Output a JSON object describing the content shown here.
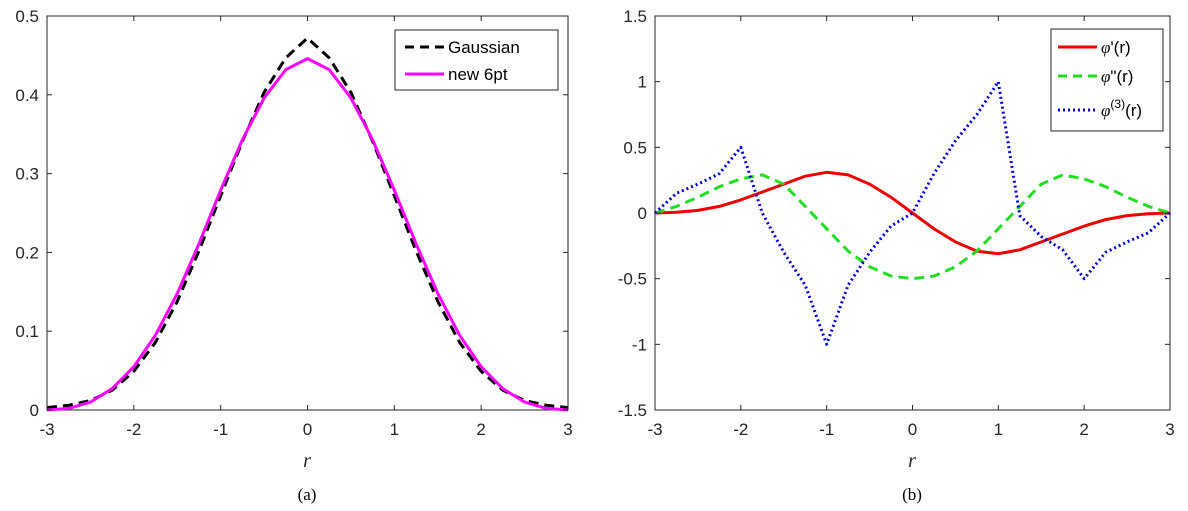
{
  "chart_data": [
    {
      "type": "line",
      "caption": "(a)",
      "xlabel": "r",
      "xlim": [
        -3,
        3
      ],
      "ylim": [
        0,
        0.5
      ],
      "xticks": [
        -3,
        -2,
        -1,
        0,
        1,
        2,
        3
      ],
      "yticks": [
        0,
        0.1,
        0.2,
        0.3,
        0.4,
        0.5
      ],
      "xtick_labels": [
        "-3",
        "-2",
        "-1",
        "0",
        "1",
        "2",
        "3"
      ],
      "ytick_labels": [
        "0",
        "0.1",
        "0.2",
        "0.3",
        "0.4",
        "0.5"
      ],
      "legend_position": "top-right",
      "x": [
        -3,
        -2.75,
        -2.5,
        -2.25,
        -2,
        -1.75,
        -1.5,
        -1.25,
        -1,
        -0.75,
        -0.5,
        -0.25,
        0,
        0.25,
        0.5,
        0.75,
        1,
        1.25,
        1.5,
        1.75,
        2,
        2.25,
        2.5,
        2.75,
        3
      ],
      "series": [
        {
          "name": "Gaussian",
          "color": "#000000",
          "style": "dashed",
          "values": [
            0.003,
            0.006,
            0.012,
            0.025,
            0.049,
            0.086,
            0.138,
            0.202,
            0.272,
            0.341,
            0.403,
            0.447,
            0.472,
            0.447,
            0.403,
            0.341,
            0.272,
            0.202,
            0.138,
            0.086,
            0.049,
            0.025,
            0.012,
            0.006,
            0.003
          ]
        },
        {
          "name": "new 6pt",
          "color": "#ff00ff",
          "style": "solid",
          "values": [
            0.0,
            0.002,
            0.01,
            0.027,
            0.055,
            0.095,
            0.148,
            0.211,
            0.279,
            0.343,
            0.396,
            0.432,
            0.446,
            0.432,
            0.396,
            0.343,
            0.279,
            0.211,
            0.148,
            0.095,
            0.055,
            0.027,
            0.01,
            0.002,
            0.0
          ]
        }
      ]
    },
    {
      "type": "line",
      "caption": "(b)",
      "xlabel": "r",
      "xlim": [
        -3,
        3
      ],
      "ylim": [
        -1.5,
        1.5
      ],
      "xticks": [
        -3,
        -2,
        -1,
        0,
        1,
        2,
        3
      ],
      "yticks": [
        -1.5,
        -1,
        -0.5,
        0,
        0.5,
        1,
        1.5
      ],
      "xtick_labels": [
        "-3",
        "-2",
        "-1",
        "0",
        "1",
        "2",
        "3"
      ],
      "ytick_labels": [
        "-1.5",
        "-1",
        "-0.5",
        "0",
        "0.5",
        "1",
        "1.5"
      ],
      "legend_position": "top-right",
      "x": [
        -3,
        -2.75,
        -2.5,
        -2.25,
        -2,
        -1.75,
        -1.5,
        -1.25,
        -1,
        -0.75,
        -0.5,
        -0.25,
        0,
        0.25,
        0.5,
        0.75,
        1,
        1.25,
        1.5,
        1.75,
        2,
        2.25,
        2.5,
        2.75,
        3
      ],
      "series": [
        {
          "name_symbol": "φ",
          "name_rest": "'(r)",
          "color": "#ee0000",
          "style": "solid",
          "values": [
            0.0,
            0.005,
            0.02,
            0.05,
            0.1,
            0.16,
            0.22,
            0.28,
            0.31,
            0.29,
            0.22,
            0.12,
            0.0,
            -0.12,
            -0.22,
            -0.29,
            -0.31,
            -0.28,
            -0.22,
            -0.16,
            -0.1,
            -0.05,
            -0.02,
            -0.005,
            0.0
          ]
        },
        {
          "name_symbol": "φ",
          "name_rest": "\"(r)",
          "color": "#22dd22",
          "style": "dashed",
          "values": [
            0.0,
            0.05,
            0.12,
            0.2,
            0.26,
            0.29,
            0.22,
            0.05,
            -0.12,
            -0.29,
            -0.41,
            -0.48,
            -0.5,
            -0.48,
            -0.41,
            -0.29,
            -0.12,
            0.05,
            0.22,
            0.29,
            0.26,
            0.2,
            0.12,
            0.05,
            0.0
          ]
        },
        {
          "name_symbol": "φ",
          "name_sup": "(3)",
          "name_rest": "(r)",
          "color": "#0000dd",
          "style": "dotted",
          "values": [
            0.0,
            0.15,
            0.22,
            0.3,
            0.5,
            0.0,
            -0.3,
            -0.55,
            -1.0,
            -0.55,
            -0.3,
            -0.1,
            0.0,
            0.3,
            0.55,
            0.75,
            1.0,
            -0.02,
            -0.18,
            -0.28,
            -0.5,
            -0.3,
            -0.22,
            -0.15,
            0.0
          ]
        }
      ]
    }
  ]
}
